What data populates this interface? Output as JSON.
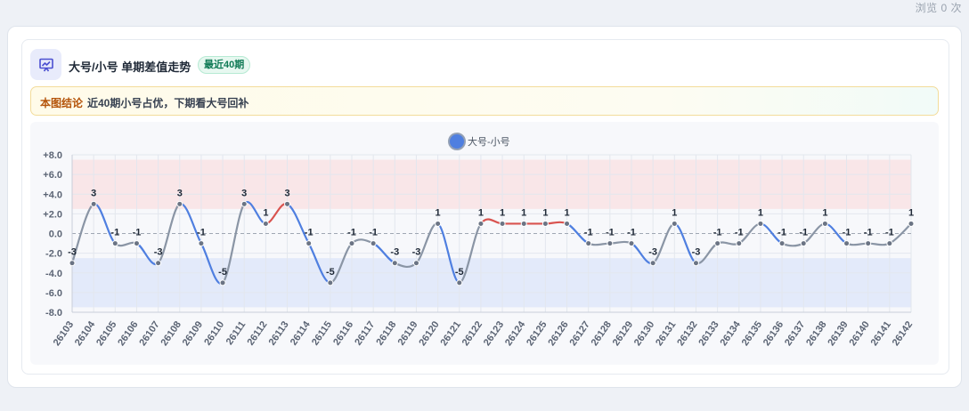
{
  "header": {
    "view_count": "浏览 0 次",
    "title": "大号/小号 单期差值走势",
    "tag": "最近40期",
    "icon": "chart-presentation-icon"
  },
  "conclusion": {
    "label": "本图结论",
    "text": "近40期小号占优，下期看大号回补"
  },
  "colors": {
    "series": "#8a95a5",
    "up": "#d9534f",
    "down": "#4f7fe0",
    "legend_dot": "#4f7fe0",
    "band_top": "#f9e6e8",
    "band_bottom": "#e3eafa"
  },
  "chart_data": {
    "type": "line",
    "legend": [
      "大号-小号"
    ],
    "legend_position": "top-center",
    "grid": true,
    "ylim": [
      -8,
      8
    ],
    "yticks": [
      "+8.0",
      "+6.0",
      "+4.0",
      "+2.0",
      "0.0",
      "-2.0",
      "-4.0",
      "-6.0",
      "-8.0"
    ],
    "shaded_bands": [
      {
        "from": 2.5,
        "to": 7.5,
        "color": "up"
      },
      {
        "from": -2.5,
        "to": -7.5,
        "color": "down"
      }
    ],
    "categories": [
      "26103",
      "26104",
      "26105",
      "26106",
      "26107",
      "26108",
      "26109",
      "26110",
      "26111",
      "26112",
      "26113",
      "26114",
      "26115",
      "26116",
      "26117",
      "26118",
      "26119",
      "26120",
      "26121",
      "26122",
      "26123",
      "26124",
      "26125",
      "26126",
      "26127",
      "26128",
      "26129",
      "26130",
      "26131",
      "26132",
      "26133",
      "26134",
      "26135",
      "26136",
      "26137",
      "26138",
      "26139",
      "26140",
      "26141",
      "26142"
    ],
    "series": [
      {
        "name": "大号-小号",
        "values": [
          -3,
          3,
          -1,
          -1,
          -3,
          3,
          -1,
          -5,
          3,
          1,
          3,
          -1,
          -5,
          -1,
          -1,
          -3,
          -3,
          1,
          -5,
          1,
          1,
          1,
          1,
          1,
          -1,
          -1,
          -1,
          -3,
          1,
          -3,
          -1,
          -1,
          1,
          -1,
          -1,
          1,
          -1,
          -1,
          -1,
          1
        ]
      }
    ]
  }
}
